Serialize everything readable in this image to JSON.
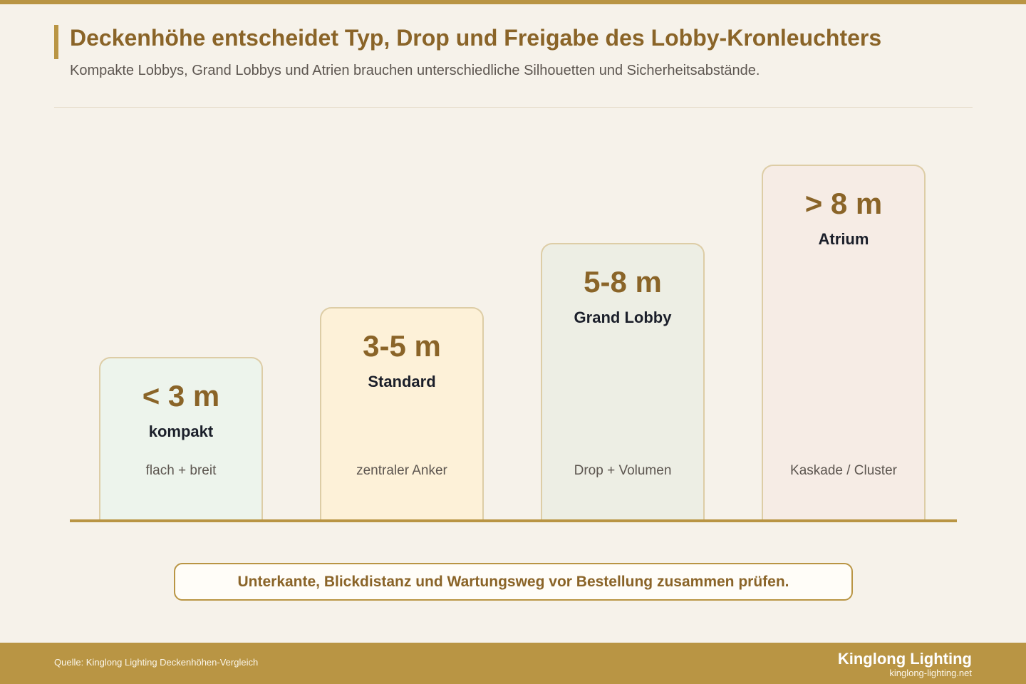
{
  "header": {
    "title": "Deckenhöhe entscheidet Typ, Drop und Freigabe des Lobby-Kronleuchters",
    "subtitle": "Kompakte Lobbys, Grand Lobbys und Atrien brauchen unterschiedliche Silhouetten und Sicherheitsabstände."
  },
  "steps": [
    {
      "height": "< 3 m",
      "type": "kompakt",
      "description": "flach + breit",
      "color": "#edf4ec"
    },
    {
      "height": "3-5 m",
      "type": "Standard",
      "description": "zentraler Anker",
      "color": "#fdf1d8"
    },
    {
      "height": "5-8 m",
      "type": "Grand Lobby",
      "description": "Drop + Volumen",
      "color": "#edeee4"
    },
    {
      "height": "> 8 m",
      "type": "Atrium",
      "description": "Kaskade / Cluster",
      "color": "#f6ece5"
    }
  ],
  "callout": {
    "text": "Unterkante, Blickdistanz und Wartungsweg vor Bestellung zusammen prüfen."
  },
  "footer": {
    "source": "Quelle: Kinglong Lighting Deckenhöhen-Vergleich",
    "brand": "Kinglong Lighting",
    "url": "kinglong-lighting.net"
  },
  "colors": {
    "accent": "#b99544",
    "title": "#8a6428",
    "background": "#f6f2ea"
  }
}
